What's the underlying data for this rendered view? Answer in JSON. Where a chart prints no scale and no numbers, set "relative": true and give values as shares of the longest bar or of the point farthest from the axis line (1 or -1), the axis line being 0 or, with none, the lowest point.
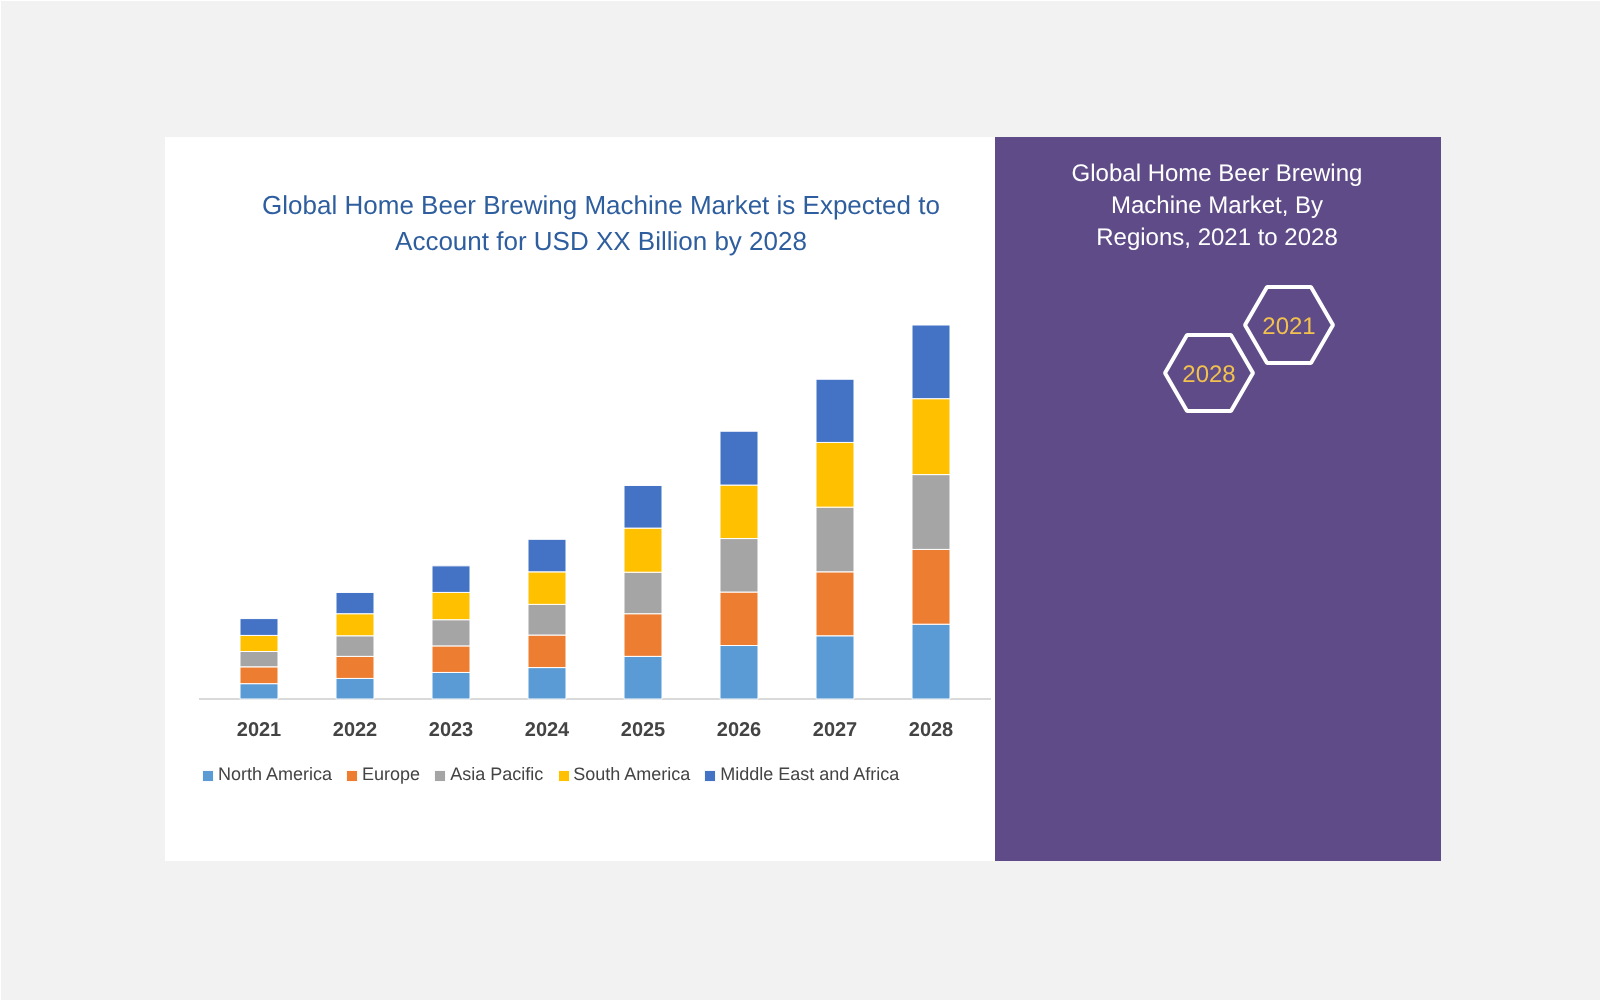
{
  "chart_data": {
    "type": "bar",
    "stacked": true,
    "relative": true,
    "title": "Global Home Beer Brewing Machine Market is Expected to Account for USD XX Billion by 2028",
    "categories": [
      "2021",
      "2022",
      "2023",
      "2024",
      "2025",
      "2026",
      "2027",
      "2028"
    ],
    "series": [
      {
        "name": "North America",
        "color": "#5b9bd5",
        "values": [
          0.041,
          0.055,
          0.071,
          0.084,
          0.114,
          0.143,
          0.169,
          0.2
        ]
      },
      {
        "name": "Europe",
        "color": "#ed7d31",
        "values": [
          0.045,
          0.059,
          0.071,
          0.087,
          0.114,
          0.143,
          0.171,
          0.2
        ]
      },
      {
        "name": "Asia Pacific",
        "color": "#a5a5a5",
        "values": [
          0.041,
          0.055,
          0.07,
          0.082,
          0.111,
          0.143,
          0.173,
          0.2
        ]
      },
      {
        "name": "South America",
        "color": "#ffc000",
        "values": [
          0.043,
          0.059,
          0.073,
          0.087,
          0.118,
          0.143,
          0.173,
          0.203
        ]
      },
      {
        "name": "Middle East and Africa",
        "color": "#4472c4",
        "values": [
          0.045,
          0.057,
          0.071,
          0.087,
          0.114,
          0.144,
          0.169,
          0.197
        ]
      }
    ],
    "legend": "bottom",
    "grid": false,
    "annotations": [
      "Global Home Beer Brewing Machine Market, By Regions, 2021 to 2028",
      "2021",
      "2028"
    ]
  }
}
